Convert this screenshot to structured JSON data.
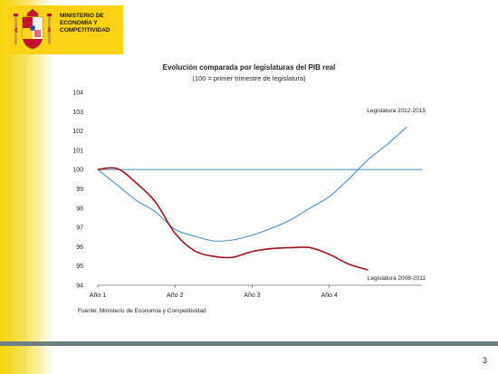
{
  "header": {
    "ministry_line1": "MINISTERIO DE",
    "ministry_line2": "ECONOMÍA Y",
    "ministry_line3": "COMPETITIVIDAD"
  },
  "page_number": "3",
  "colors": {
    "band_yellow": "#f4d40a",
    "line_2012": "#4a90c8",
    "line_2008": "#a0141e",
    "reference_line": "#4a90c8"
  },
  "chart_data": {
    "type": "line",
    "title": "Evolución comparada por legislaturas del PIB real",
    "subtitle": "(100 = primer trimestre de legislatura)",
    "ylim": [
      94,
      104
    ],
    "yticks": [
      94,
      95,
      96,
      97,
      98,
      99,
      100,
      101,
      102,
      103,
      104
    ],
    "xlim": [
      1,
      5.2
    ],
    "xticks": [
      {
        "value": 1,
        "label": "Año 1"
      },
      {
        "value": 2,
        "label": "Año 2"
      },
      {
        "value": 3,
        "label": "Año 3"
      },
      {
        "value": 4,
        "label": "Año 4"
      }
    ],
    "reference_value": 100,
    "grid": false,
    "series": [
      {
        "name": "Legislatura 2012-2015",
        "color": "#4a90c8",
        "x": [
          1,
          1.25,
          1.5,
          1.75,
          2,
          2.25,
          2.5,
          2.75,
          3,
          3.25,
          3.5,
          3.75,
          4,
          4.25,
          4.5,
          4.75,
          5
        ],
        "y": [
          100,
          99.2,
          98.4,
          97.8,
          96.9,
          96.55,
          96.3,
          96.35,
          96.6,
          96.95,
          97.4,
          98.0,
          98.6,
          99.5,
          100.5,
          101.3,
          102.2
        ]
      },
      {
        "name": "Legislatura 2008-2011",
        "color": "#a0141e",
        "x": [
          1,
          1.25,
          1.5,
          1.75,
          2,
          2.25,
          2.5,
          2.75,
          3,
          3.25,
          3.5,
          3.75,
          4,
          4.25,
          4.5
        ],
        "y": [
          100,
          100.05,
          99.3,
          98.3,
          96.7,
          95.8,
          95.5,
          95.45,
          95.75,
          95.9,
          95.95,
          95.95,
          95.6,
          95.1,
          94.8
        ]
      }
    ],
    "source": "Fuente: Ministerio de Economía y Competitividad"
  }
}
